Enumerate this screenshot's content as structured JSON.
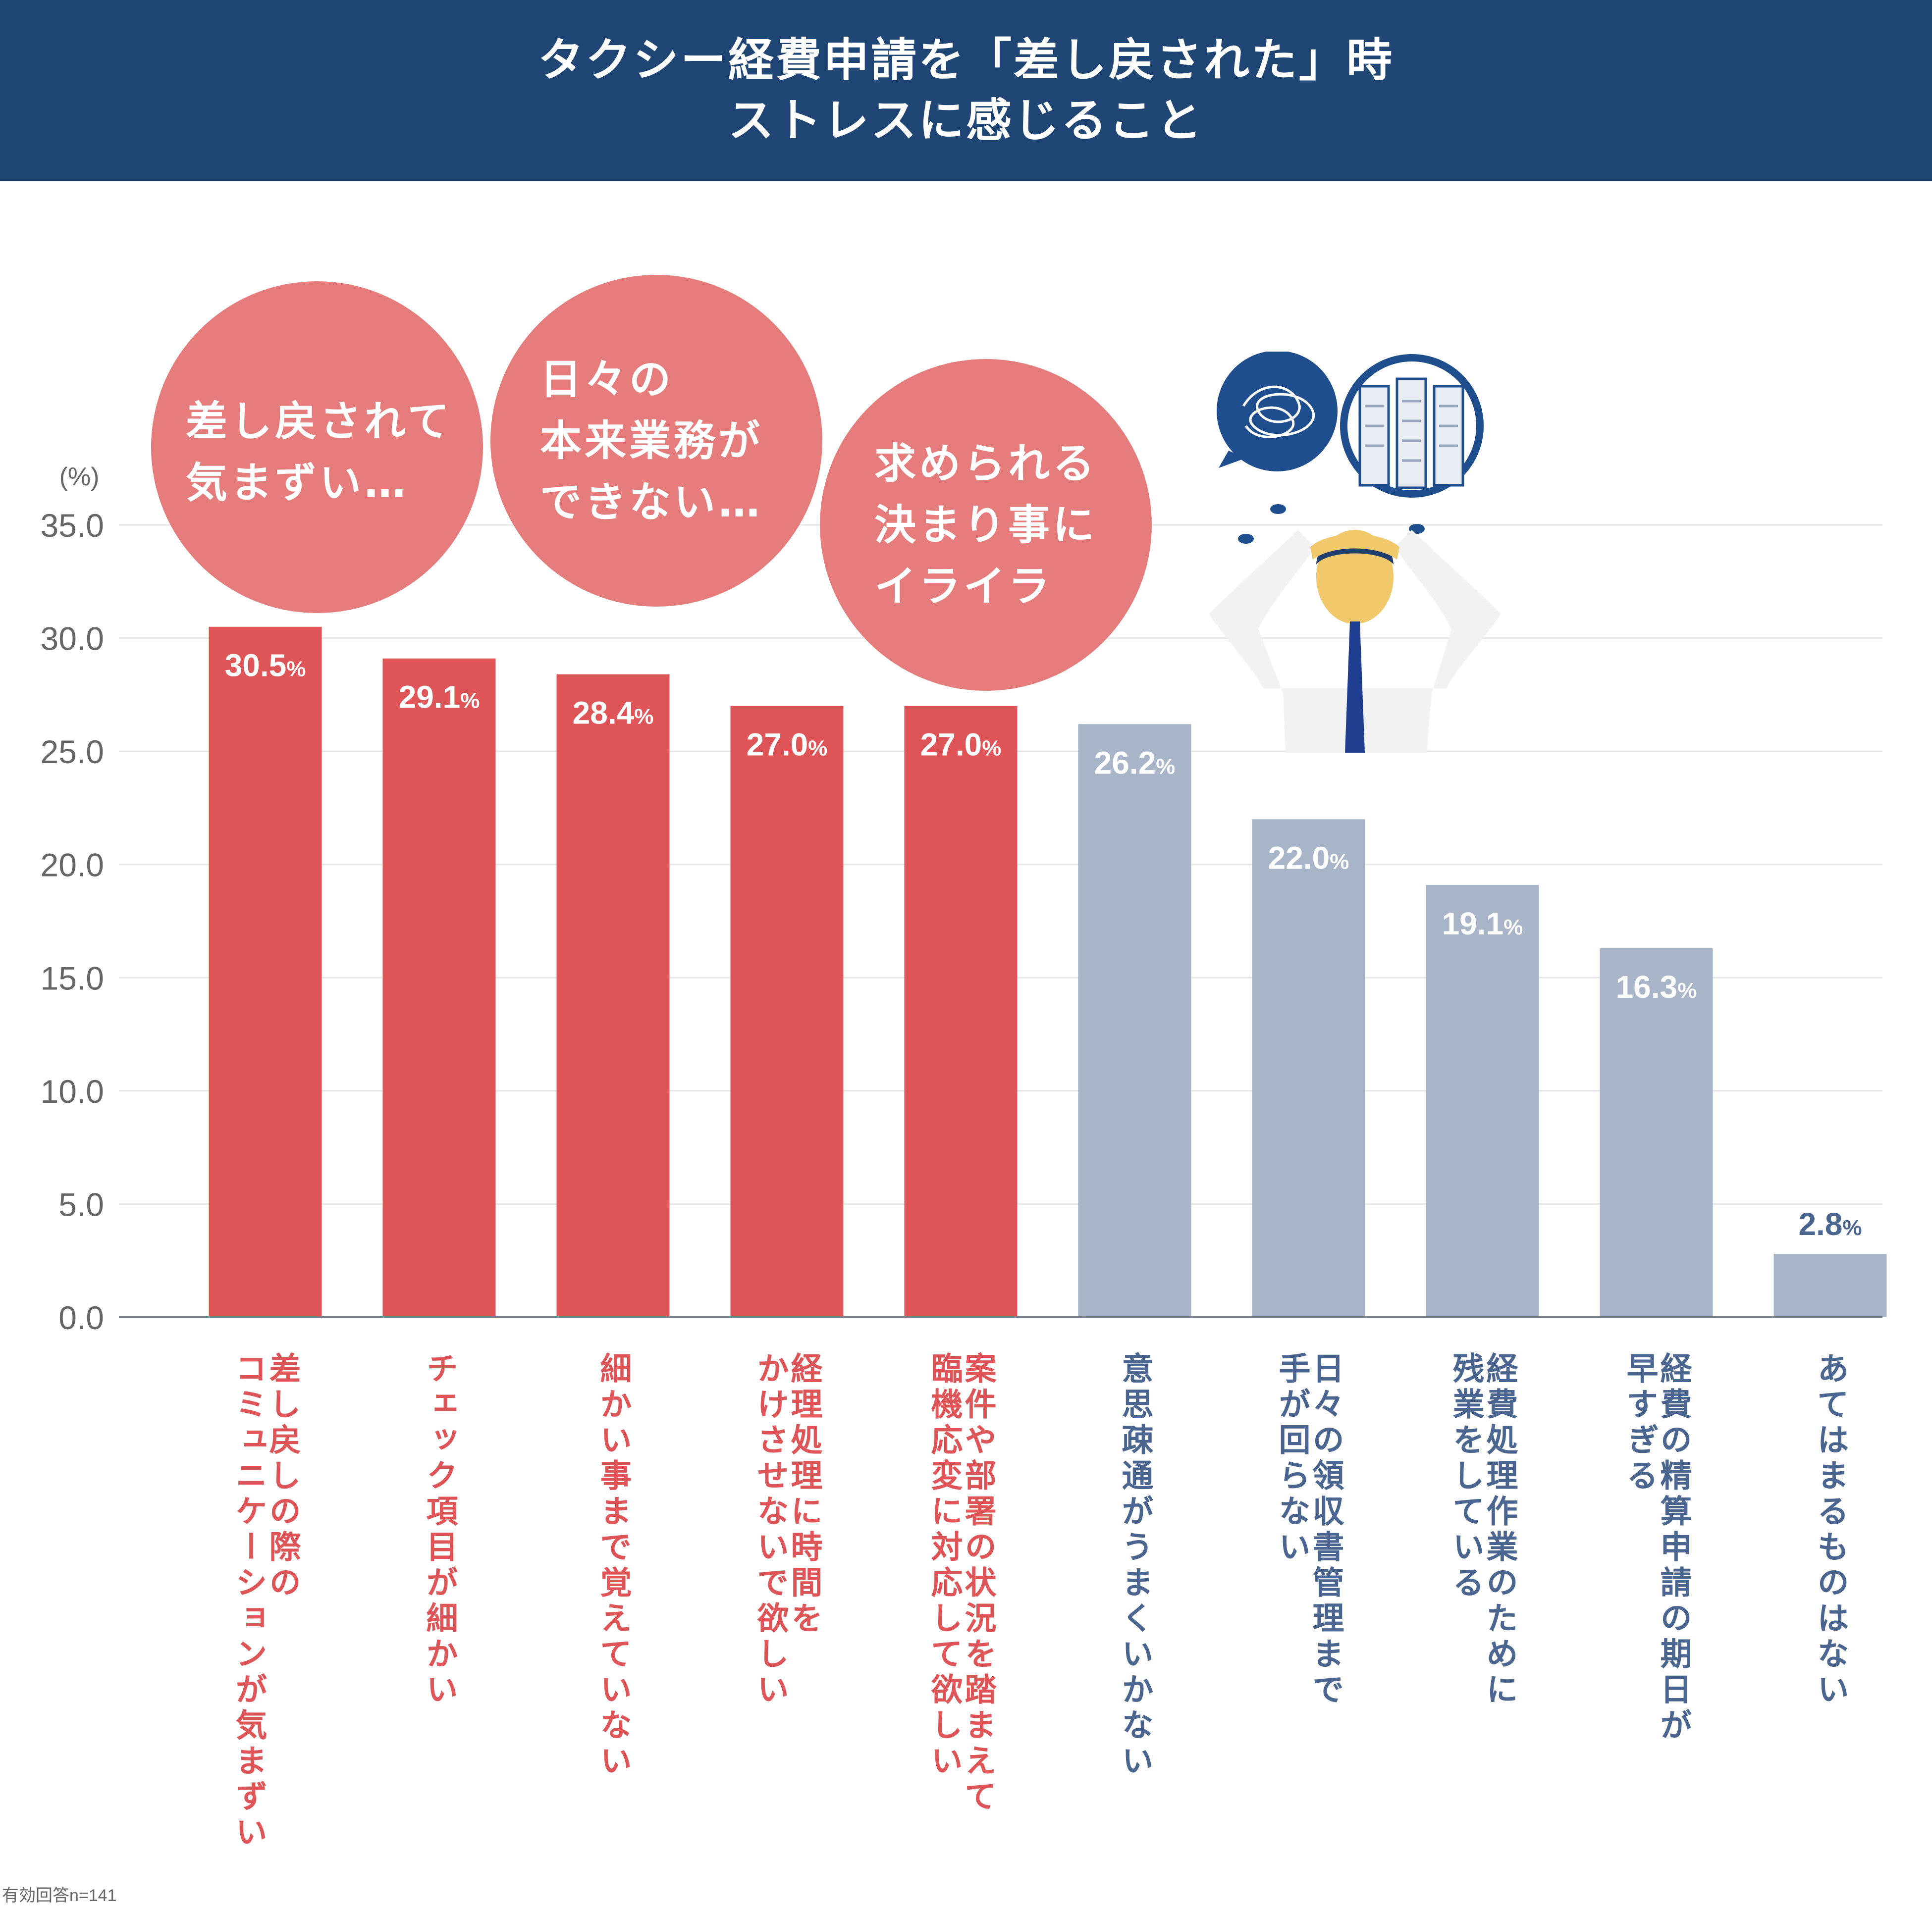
{
  "header": {
    "title_line1": "タクシー経費申請を「差し戻された」時",
    "title_line2": "ストレスに感じること"
  },
  "colors": {
    "header_bg": "#1f4574",
    "highlight_bar": "#de5457",
    "normal_bar": "#a8b5c9",
    "highlight_label": "#de5457",
    "normal_label": "#4a6590",
    "bubble": "#e57b7b",
    "axis_text": "#666666"
  },
  "bubbles": [
    {
      "lines": [
        "差し戻されて",
        "気まずい…"
      ]
    },
    {
      "lines": [
        "日々の",
        "本来業務が",
        "できない…"
      ]
    },
    {
      "lines": [
        "求められる",
        "決まり事に",
        "イライラ"
      ]
    }
  ],
  "chart_data": {
    "type": "bar",
    "title": "タクシー経費申請を「差し戻された」時 ストレスに感じること",
    "ylabel": "(%)",
    "xlabel": "",
    "ylim": [
      0,
      35
    ],
    "yticks": [
      "0.0",
      "5.0",
      "10.0",
      "15.0",
      "20.0",
      "25.0",
      "30.0",
      "35.0"
    ],
    "grid": true,
    "unit_suffix": "%",
    "categories": [
      "差し戻しの際の\nコミュニケーションが気まずい",
      "チェック項目が細かい",
      "細かい事まで覚えていない",
      "経理処理に時間を\nかけさせないで欲しい",
      "案件や部署の状況を踏まえて\n臨機応変に対応して欲しい",
      "意思疎通がうまくいかない",
      "日々の領収書管理まで\n手が回らない",
      "経費処理作業のために\n残業をしている",
      "経費の精算申請の期日が\n早すぎる",
      "あてはまるものはない"
    ],
    "values": [
      30.5,
      29.1,
      28.4,
      27.0,
      27.0,
      26.2,
      22.0,
      19.1,
      16.3,
      2.8
    ],
    "value_labels": [
      "30.5",
      "29.1",
      "28.4",
      "27.0",
      "27.0",
      "26.2",
      "22.0",
      "19.1",
      "16.3",
      "2.8"
    ],
    "highlighted": [
      true,
      true,
      true,
      true,
      true,
      false,
      false,
      false,
      false,
      false
    ]
  },
  "footnote": "有効回答n=141"
}
